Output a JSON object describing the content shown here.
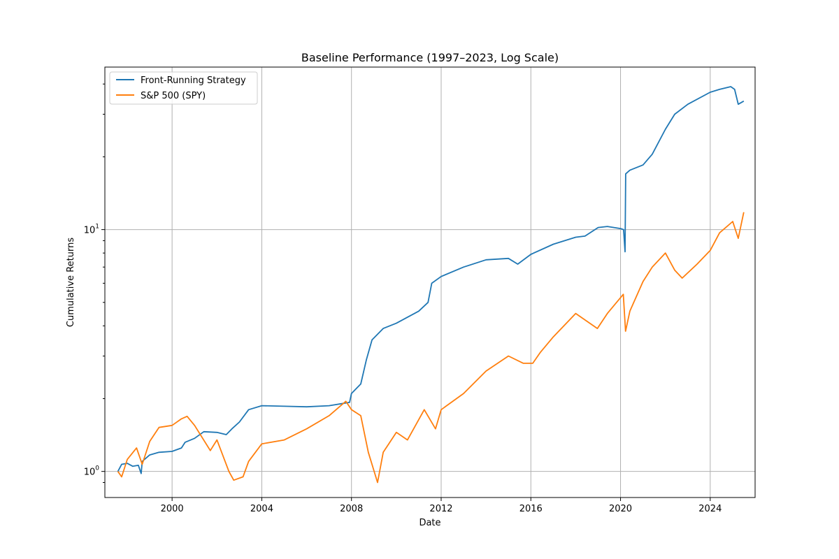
{
  "chart_data": {
    "type": "line",
    "title": "Baseline Performance (1997–2023, Log Scale)",
    "xlabel": "Date",
    "ylabel": "Cumulative Returns",
    "yscale": "log",
    "grid": true,
    "legend_placement": "top-left",
    "xlim": [
      "1997-01-01",
      "2026-01-01"
    ],
    "ylim": [
      0.78,
      47
    ],
    "x_ticks": [
      {
        "date": "2000-01-01",
        "label": "2000"
      },
      {
        "date": "2004-01-01",
        "label": "2004"
      },
      {
        "date": "2008-01-01",
        "label": "2008"
      },
      {
        "date": "2012-01-01",
        "label": "2012"
      },
      {
        "date": "2016-01-01",
        "label": "2016"
      },
      {
        "date": "2020-01-01",
        "label": "2020"
      },
      {
        "date": "2024-01-01",
        "label": "2024"
      }
    ],
    "y_major_ticks": [
      {
        "value": 1,
        "base": "10",
        "exp": "0"
      },
      {
        "value": 10,
        "base": "10",
        "exp": "1"
      }
    ],
    "y_minor_ticks": [
      0.9,
      2,
      3,
      4,
      5,
      6,
      7,
      8,
      9,
      20,
      30,
      40
    ],
    "series": [
      {
        "name": "Front-Running Strategy",
        "color": "#1f77b4",
        "points": [
          [
            "1997-08-01",
            1.0
          ],
          [
            "1997-10-01",
            1.07
          ],
          [
            "1998-01-01",
            1.08
          ],
          [
            "1998-04-01",
            1.05
          ],
          [
            "1998-07-01",
            1.06
          ],
          [
            "1998-08-15",
            0.98
          ],
          [
            "1998-09-01",
            1.1
          ],
          [
            "1999-01-01",
            1.17
          ],
          [
            "1999-06-01",
            1.2
          ],
          [
            "2000-01-01",
            1.21
          ],
          [
            "2000-06-01",
            1.25
          ],
          [
            "2000-08-01",
            1.32
          ],
          [
            "2001-01-01",
            1.37
          ],
          [
            "2001-06-01",
            1.46
          ],
          [
            "2002-01-01",
            1.45
          ],
          [
            "2002-06-01",
            1.42
          ],
          [
            "2002-09-01",
            1.5
          ],
          [
            "2003-01-01",
            1.6
          ],
          [
            "2003-06-01",
            1.8
          ],
          [
            "2004-01-01",
            1.87
          ],
          [
            "2005-01-01",
            1.86
          ],
          [
            "2006-01-01",
            1.85
          ],
          [
            "2007-01-01",
            1.87
          ],
          [
            "2007-12-01",
            1.93
          ],
          [
            "2008-01-01",
            2.1
          ],
          [
            "2008-06-01",
            2.3
          ],
          [
            "2008-09-01",
            2.9
          ],
          [
            "2008-12-01",
            3.5
          ],
          [
            "2009-06-01",
            3.9
          ],
          [
            "2010-01-01",
            4.1
          ],
          [
            "2010-06-01",
            4.3
          ],
          [
            "2011-01-01",
            4.6
          ],
          [
            "2011-06-01",
            5.0
          ],
          [
            "2011-08-01",
            6.0
          ],
          [
            "2012-01-01",
            6.4
          ],
          [
            "2013-01-01",
            7.0
          ],
          [
            "2014-01-01",
            7.5
          ],
          [
            "2015-01-01",
            7.6
          ],
          [
            "2015-06-01",
            7.2
          ],
          [
            "2016-01-01",
            7.9
          ],
          [
            "2017-01-01",
            8.7
          ],
          [
            "2018-01-01",
            9.3
          ],
          [
            "2018-06-01",
            9.4
          ],
          [
            "2019-01-01",
            10.2
          ],
          [
            "2019-06-01",
            10.3
          ],
          [
            "2020-01-01",
            10.1
          ],
          [
            "2020-02-20",
            10.0
          ],
          [
            "2020-03-15",
            8.1
          ],
          [
            "2020-03-25",
            17.0
          ],
          [
            "2020-06-01",
            17.6
          ],
          [
            "2021-01-01",
            18.5
          ],
          [
            "2021-06-01",
            20.5
          ],
          [
            "2022-01-01",
            26.0
          ],
          [
            "2022-06-01",
            30.0
          ],
          [
            "2023-01-01",
            33.0
          ],
          [
            "2024-01-01",
            37.0
          ],
          [
            "2024-06-01",
            38.0
          ],
          [
            "2024-12-01",
            39.0
          ],
          [
            "2025-02-01",
            38.0
          ],
          [
            "2025-04-01",
            33.0
          ],
          [
            "2025-07-01",
            34.0
          ]
        ]
      },
      {
        "name": "S&P 500 (SPY)",
        "color": "#ff7f0e",
        "points": [
          [
            "1997-08-01",
            1.0
          ],
          [
            "1997-10-01",
            0.95
          ],
          [
            "1998-01-01",
            1.12
          ],
          [
            "1998-06-01",
            1.25
          ],
          [
            "1998-09-01",
            1.07
          ],
          [
            "1999-01-01",
            1.33
          ],
          [
            "1999-06-01",
            1.52
          ],
          [
            "2000-01-01",
            1.55
          ],
          [
            "2000-06-01",
            1.65
          ],
          [
            "2000-09-01",
            1.69
          ],
          [
            "2001-01-01",
            1.55
          ],
          [
            "2001-09-15",
            1.22
          ],
          [
            "2002-01-01",
            1.35
          ],
          [
            "2002-07-15",
            1.0
          ],
          [
            "2002-10-01",
            0.92
          ],
          [
            "2003-03-01",
            0.95
          ],
          [
            "2003-06-01",
            1.1
          ],
          [
            "2004-01-01",
            1.3
          ],
          [
            "2005-01-01",
            1.35
          ],
          [
            "2006-01-01",
            1.5
          ],
          [
            "2007-01-01",
            1.7
          ],
          [
            "2007-10-01",
            1.95
          ],
          [
            "2008-01-01",
            1.8
          ],
          [
            "2008-06-01",
            1.7
          ],
          [
            "2008-10-01",
            1.2
          ],
          [
            "2009-03-01",
            0.9
          ],
          [
            "2009-06-01",
            1.2
          ],
          [
            "2010-01-01",
            1.45
          ],
          [
            "2010-07-01",
            1.35
          ],
          [
            "2011-04-01",
            1.8
          ],
          [
            "2011-10-01",
            1.5
          ],
          [
            "2012-01-01",
            1.8
          ],
          [
            "2013-01-01",
            2.1
          ],
          [
            "2014-01-01",
            2.6
          ],
          [
            "2015-01-01",
            3.0
          ],
          [
            "2015-09-01",
            2.8
          ],
          [
            "2016-02-01",
            2.8
          ],
          [
            "2016-06-01",
            3.1
          ],
          [
            "2017-01-01",
            3.6
          ],
          [
            "2018-01-01",
            4.5
          ],
          [
            "2018-12-20",
            3.9
          ],
          [
            "2019-06-01",
            4.5
          ],
          [
            "2020-02-15",
            5.4
          ],
          [
            "2020-03-23",
            3.8
          ],
          [
            "2020-06-01",
            4.6
          ],
          [
            "2021-01-01",
            6.1
          ],
          [
            "2021-06-01",
            7.0
          ],
          [
            "2022-01-01",
            8.0
          ],
          [
            "2022-06-01",
            6.8
          ],
          [
            "2022-10-01",
            6.3
          ],
          [
            "2023-06-01",
            7.2
          ],
          [
            "2024-01-01",
            8.2
          ],
          [
            "2024-06-01",
            9.7
          ],
          [
            "2025-01-01",
            10.8
          ],
          [
            "2025-04-01",
            9.2
          ],
          [
            "2025-07-01",
            11.8
          ]
        ]
      }
    ]
  }
}
